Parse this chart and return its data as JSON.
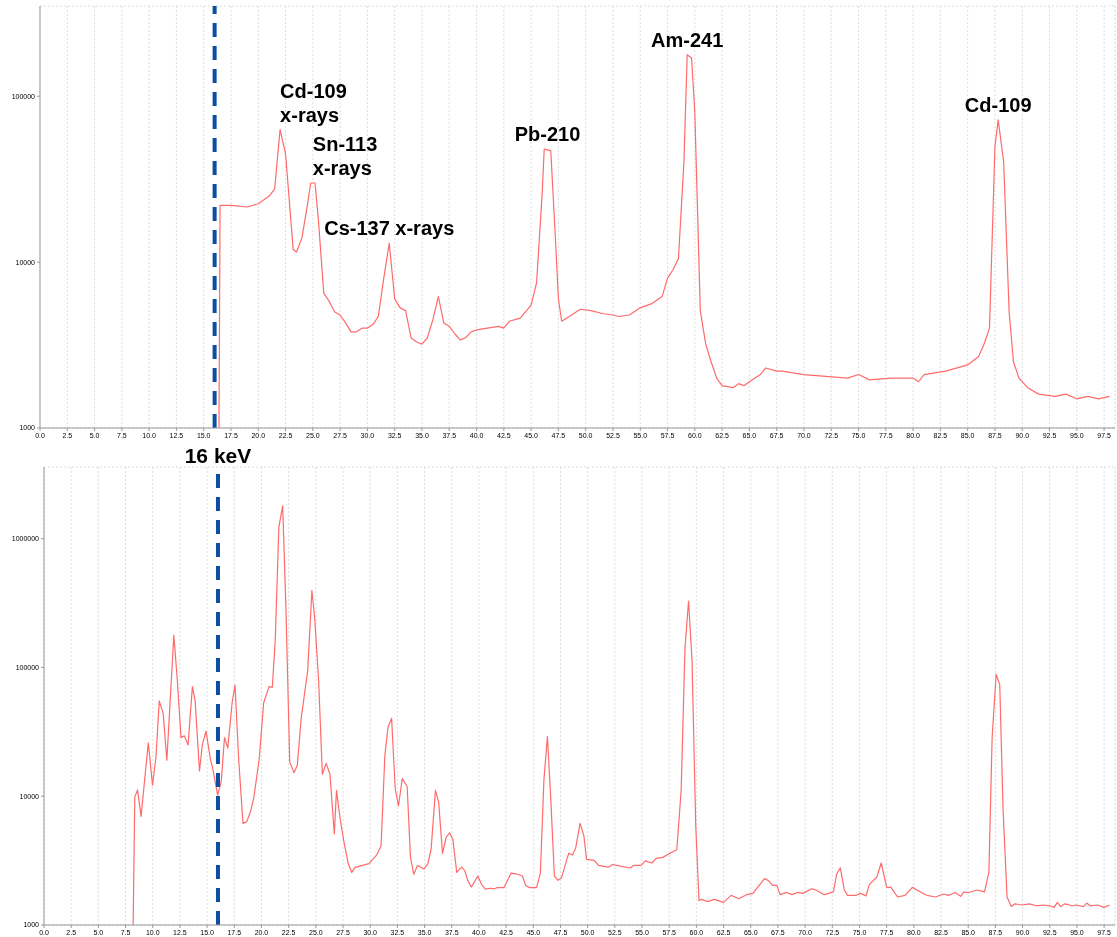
{
  "chart_data": [
    {
      "type": "line",
      "grid": true,
      "log": "y",
      "marker": "none",
      "line_style": "solid",
      "xlim": [
        0,
        98.5
      ],
      "ylim": [
        1000,
        350000
      ],
      "xticks": [
        {
          "value": 0,
          "label": "0.0"
        },
        {
          "value": 2.5,
          "label": "2.5"
        },
        {
          "value": 5,
          "label": "5.0"
        },
        {
          "value": 7.5,
          "label": "7.5"
        },
        {
          "value": 10,
          "label": "10.0"
        },
        {
          "value": 12.5,
          "label": "12.5"
        },
        {
          "value": 15,
          "label": "15.0"
        },
        {
          "value": 17.5,
          "label": "17.5"
        },
        {
          "value": 20,
          "label": "20.0"
        },
        {
          "value": 22.5,
          "label": "22.5"
        },
        {
          "value": 25,
          "label": "25.0"
        },
        {
          "value": 27.5,
          "label": "27.5"
        },
        {
          "value": 30,
          "label": "30.0"
        },
        {
          "value": 32.5,
          "label": "32.5"
        },
        {
          "value": 35,
          "label": "35.0"
        },
        {
          "value": 37.5,
          "label": "37.5"
        },
        {
          "value": 40,
          "label": "40.0"
        },
        {
          "value": 42.5,
          "label": "42.5"
        },
        {
          "value": 45,
          "label": "45.0"
        },
        {
          "value": 47.5,
          "label": "47.5"
        },
        {
          "value": 50,
          "label": "50.0"
        },
        {
          "value": 52.5,
          "label": "52.5"
        },
        {
          "value": 55,
          "label": "55.0"
        },
        {
          "value": 57.5,
          "label": "57.5"
        },
        {
          "value": 60,
          "label": "60.0"
        },
        {
          "value": 62.5,
          "label": "62.5"
        },
        {
          "value": 65,
          "label": "65.0"
        },
        {
          "value": 67.5,
          "label": "67.5"
        },
        {
          "value": 70,
          "label": "70.0"
        },
        {
          "value": 72.5,
          "label": "72.5"
        },
        {
          "value": 75,
          "label": "75.0"
        },
        {
          "value": 77.5,
          "label": "77.5"
        },
        {
          "value": 80,
          "label": "80.0"
        },
        {
          "value": 82.5,
          "label": "82.5"
        },
        {
          "value": 85,
          "label": "85.0"
        },
        {
          "value": 87.5,
          "label": "87.5"
        },
        {
          "value": 90,
          "label": "90.0"
        },
        {
          "value": 92.5,
          "label": "92.5"
        },
        {
          "value": 95,
          "label": "95.0"
        },
        {
          "value": 97.5,
          "label": "97.5"
        }
      ],
      "yticks": [
        1000,
        10000,
        100000
      ],
      "ref_lines": [
        {
          "axis": "x",
          "value": 16,
          "color": "#0b4ea2",
          "line_style": "dashed"
        }
      ],
      "annotations": [
        {
          "text": "Cd-109\nx-rays",
          "x": 22,
          "y": 63000
        },
        {
          "text": "Sn-113\nx-rays",
          "x": 25,
          "y": 30000
        },
        {
          "text": "Cs-137 x-rays",
          "x": 32,
          "y": 13000
        },
        {
          "text": "Pb-210",
          "x": 46.5,
          "y": 48000
        },
        {
          "text": "Am-241",
          "x": 59.3,
          "y": 178000
        },
        {
          "text": "Cd-109",
          "x": 87.8,
          "y": 72000
        }
      ],
      "series": [
        {
          "color": "#ff6b6b",
          "x": [
            16.4,
            16.5,
            17.5,
            19,
            20,
            21,
            21.5,
            22,
            22.5,
            23.2,
            23.5,
            24,
            24.5,
            24.8,
            25.2,
            25.5,
            26,
            26.5,
            27,
            27.5,
            28,
            28.5,
            29,
            29.5,
            30,
            30.5,
            31,
            31.5,
            32,
            32.5,
            33,
            33.5,
            34,
            34.5,
            35,
            35.5,
            36,
            36.5,
            37,
            37.5,
            38,
            38.5,
            39,
            39.5,
            40,
            41,
            42,
            42.5,
            43,
            44,
            45,
            45.5,
            46,
            46.2,
            46.8,
            47.2,
            47.5,
            47.8,
            48.5,
            49.5,
            50.5,
            51.5,
            52.5,
            53,
            54,
            55,
            56,
            57,
            57.5,
            58,
            58.5,
            59,
            59.3,
            59.7,
            60,
            60.5,
            61,
            61.5,
            62,
            62.5,
            63.5,
            64,
            64.5,
            65,
            66,
            66.5,
            67.5,
            68,
            70,
            72,
            74,
            75,
            76,
            78,
            80,
            80.5,
            81,
            83,
            85,
            86,
            86.5,
            87,
            87.5,
            87.8,
            88.3,
            88.8,
            89.2,
            89.7,
            90.5,
            91.5,
            93,
            94,
            95,
            96,
            97,
            98
          ],
          "values": [
            1000,
            22000,
            22000,
            21500,
            22500,
            25000,
            27600,
            63000,
            45000,
            11900,
            11500,
            14000,
            22000,
            30000,
            30000,
            18300,
            6500,
            5800,
            5000,
            4800,
            4300,
            3800,
            3800,
            4000,
            4000,
            4200,
            4700,
            8000,
            13000,
            6000,
            5300,
            5100,
            3500,
            3300,
            3200,
            3500,
            4500,
            6200,
            4300,
            4100,
            3700,
            3400,
            3500,
            3800,
            3900,
            4000,
            4100,
            4000,
            4400,
            4600,
            5500,
            7500,
            25000,
            48000,
            47000,
            15000,
            6000,
            4400,
            4700,
            5200,
            5100,
            4900,
            4800,
            4700,
            4800,
            5300,
            5600,
            6200,
            8000,
            9000,
            10500,
            40000,
            178000,
            170000,
            80000,
            5100,
            3200,
            2500,
            2000,
            1800,
            1750,
            1850,
            1800,
            1900,
            2100,
            2300,
            2200,
            2200,
            2100,
            2050,
            2000,
            2100,
            1950,
            2000,
            2000,
            1900,
            2100,
            2200,
            2400,
            2700,
            3200,
            4000,
            50000,
            72000,
            40000,
            5000,
            2500,
            2000,
            1750,
            1600,
            1550,
            1600,
            1500,
            1550,
            1500,
            1550
          ]
        }
      ]
    },
    {
      "type": "line",
      "grid": true,
      "log": "y",
      "marker": "none",
      "line_style": "solid",
      "xlim": [
        0,
        98.5
      ],
      "ylim": [
        1000,
        3600000
      ],
      "xticks": [
        {
          "value": 0,
          "label": "0.0"
        },
        {
          "value": 2.5,
          "label": "2.5"
        },
        {
          "value": 5,
          "label": "5.0"
        },
        {
          "value": 7.5,
          "label": "7.5"
        },
        {
          "value": 10,
          "label": "10.0"
        },
        {
          "value": 12.5,
          "label": "12.5"
        },
        {
          "value": 15,
          "label": "15.0"
        },
        {
          "value": 17.5,
          "label": "17.5"
        },
        {
          "value": 20,
          "label": "20.0"
        },
        {
          "value": 22.5,
          "label": "22.5"
        },
        {
          "value": 25,
          "label": "25.0"
        },
        {
          "value": 27.5,
          "label": "27.5"
        },
        {
          "value": 30,
          "label": "30.0"
        },
        {
          "value": 32.5,
          "label": "32.5"
        },
        {
          "value": 35,
          "label": "35.0"
        },
        {
          "value": 37.5,
          "label": "37.5"
        },
        {
          "value": 40,
          "label": "40.0"
        },
        {
          "value": 42.5,
          "label": "42.5"
        },
        {
          "value": 45,
          "label": "45.0"
        },
        {
          "value": 47.5,
          "label": "47.5"
        },
        {
          "value": 50,
          "label": "50.0"
        },
        {
          "value": 52.5,
          "label": "52.5"
        },
        {
          "value": 55,
          "label": "55.0"
        },
        {
          "value": 57.5,
          "label": "57.5"
        },
        {
          "value": 60,
          "label": "60.0"
        },
        {
          "value": 62.5,
          "label": "62.5"
        },
        {
          "value": 65,
          "label": "65.0"
        },
        {
          "value": 67.5,
          "label": "67.5"
        },
        {
          "value": 70,
          "label": "70.0"
        },
        {
          "value": 72.5,
          "label": "72.5"
        },
        {
          "value": 75,
          "label": "75.0"
        },
        {
          "value": 77.5,
          "label": "77.5"
        },
        {
          "value": 80,
          "label": "80.0"
        },
        {
          "value": 82.5,
          "label": "82.5"
        },
        {
          "value": 85,
          "label": "85.0"
        },
        {
          "value": 87.5,
          "label": "87.5"
        },
        {
          "value": 90,
          "label": "90.0"
        },
        {
          "value": 92.5,
          "label": "92.5"
        },
        {
          "value": 95,
          "label": "95.0"
        },
        {
          "value": 97.5,
          "label": "97.5"
        }
      ],
      "yticks": [
        1000,
        10000,
        100000,
        1000000
      ],
      "ref_lines": [
        {
          "axis": "x",
          "value": 16,
          "label": "16 keV",
          "color": "#0b4ea2",
          "line_style": "dashed"
        }
      ],
      "series": [
        {
          "color": "#ff6b6b",
          "x": [
            8.2,
            8.35,
            8.6,
            8.93,
            9.59,
            9.98,
            10.3,
            10.6,
            10.96,
            11.3,
            11.94,
            12.27,
            12.6,
            12.9,
            13.25,
            13.65,
            13.9,
            14.3,
            14.56,
            14.9,
            15.3,
            15.5,
            15.97,
            16.3,
            16.6,
            16.9,
            17.3,
            17.57,
            17.9,
            18.3,
            18.65,
            19,
            19.3,
            19.8,
            20.2,
            20.7,
            21,
            21.27,
            21.6,
            21.95,
            22.25,
            22.6,
            23,
            23.3,
            23.65,
            24.25,
            24.64,
            24.9,
            25.26,
            25.6,
            25.95,
            26.3,
            26.7,
            26.9,
            27.25,
            27.6,
            27.98,
            28.3,
            28.6,
            29.9,
            30.6,
            31,
            31.35,
            31.64,
            31.97,
            32.3,
            32.6,
            32.95,
            33.4,
            33.7,
            34,
            34.36,
            34.95,
            35.3,
            35.6,
            36,
            36.3,
            36.65,
            36.98,
            37.3,
            37.6,
            37.96,
            38.4,
            38.7,
            39,
            39.3,
            39.9,
            40.25,
            40.6,
            41.05,
            41.4,
            41.7,
            42.3,
            42.96,
            43.5,
            44,
            44.3,
            44.67,
            45.3,
            45.65,
            45.98,
            46.3,
            46.6,
            46.94,
            47.27,
            47.6,
            48.26,
            48.6,
            48.9,
            49.3,
            49.65,
            49.9,
            50.6,
            51,
            51.9,
            52.3,
            53.2,
            53.95,
            54.2,
            54.9,
            55.3,
            55.9,
            56.3,
            56.9,
            57.7,
            58.2,
            58.6,
            58.95,
            59.28,
            59.6,
            59.94,
            60.24,
            60.5,
            61,
            61.66,
            62.5,
            63.2,
            63.9,
            64.6,
            65.2,
            66.26,
            66.6,
            67,
            67.4,
            67.7,
            68.3,
            68.8,
            69.3,
            69.8,
            70.6,
            71,
            71.76,
            72.6,
            72.9,
            73.24,
            73.6,
            73.9,
            74.7,
            75.1,
            75.6,
            75.9,
            76.6,
            77,
            77.5,
            77.9,
            78.5,
            79.2,
            79.86,
            80.7,
            81.2,
            82,
            82.7,
            83.2,
            83.8,
            84.3,
            84.6,
            85,
            85.8,
            86.5,
            86.9,
            87.2,
            87.57,
            87.9,
            88.2,
            88.57,
            88.96,
            89.3,
            89.96,
            90.6,
            91.3,
            91.9,
            92.5,
            92.9,
            93.2,
            93.5,
            93.9,
            94.6,
            94.9,
            95.6,
            95.9,
            96.2,
            96.9,
            97.5,
            98
          ],
          "values": [
            1000,
            9840,
            11200,
            6970,
            26000,
            12200,
            20200,
            55000,
            44000,
            19000,
            178000,
            78000,
            28500,
            29500,
            25000,
            71000,
            55000,
            15700,
            25000,
            32000,
            19500,
            16700,
            10200,
            13000,
            28500,
            23600,
            53000,
            73000,
            19600,
            6150,
            6350,
            7640,
            9800,
            19600,
            53000,
            71000,
            70000,
            165000,
            1224000,
            1800000,
            290000,
            18400,
            15200,
            17500,
            40000,
            94000,
            396000,
            240000,
            78000,
            14800,
            18000,
            14800,
            5100,
            11100,
            6550,
            4360,
            3000,
            2560,
            2800,
            3000,
            3500,
            4100,
            20800,
            34500,
            40200,
            11500,
            8400,
            13700,
            11900,
            3400,
            2480,
            2900,
            2720,
            3000,
            3840,
            11100,
            8950,
            3600,
            4780,
            5200,
            4640,
            2560,
            2810,
            2640,
            2190,
            1970,
            2400,
            2060,
            1900,
            1930,
            1910,
            1950,
            1950,
            2530,
            2480,
            2400,
            2030,
            1950,
            1950,
            2520,
            13500,
            29000,
            9840,
            2400,
            2220,
            2330,
            3610,
            3500,
            3970,
            6150,
            4940,
            3230,
            3180,
            2900,
            2810,
            2950,
            2840,
            2770,
            2900,
            2900,
            3150,
            3030,
            3290,
            3350,
            3650,
            3840,
            11100,
            141000,
            328000,
            113000,
            5960,
            1550,
            1580,
            1520,
            1580,
            1500,
            1700,
            1600,
            1720,
            1760,
            2290,
            2220,
            2030,
            2030,
            1720,
            1790,
            1720,
            1790,
            1760,
            1910,
            1870,
            1720,
            1810,
            2480,
            2780,
            1870,
            1700,
            1700,
            1760,
            1680,
            2060,
            2360,
            3030,
            1960,
            1960,
            1650,
            1700,
            1960,
            1790,
            1700,
            1650,
            1740,
            1700,
            1790,
            1670,
            1810,
            1780,
            1870,
            1810,
            2560,
            28500,
            88200,
            73500,
            8140,
            1650,
            1390,
            1460,
            1430,
            1460,
            1410,
            1430,
            1410,
            1370,
            1500,
            1390,
            1460,
            1410,
            1430,
            1390,
            1480,
            1410,
            1430,
            1370,
            1430
          ]
        }
      ]
    }
  ]
}
